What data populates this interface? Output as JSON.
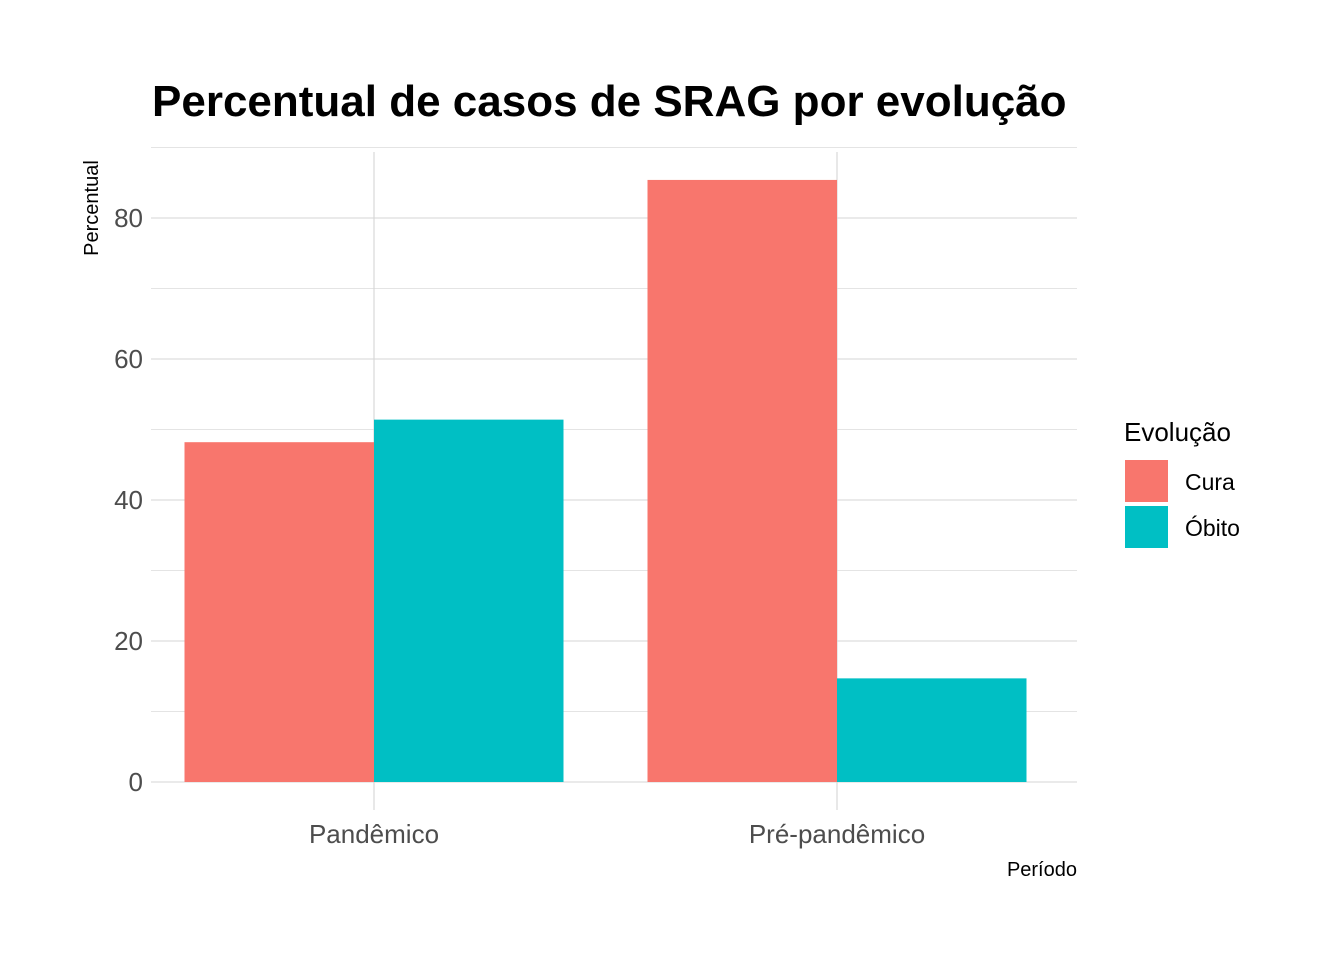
{
  "chart_data": {
    "type": "bar",
    "title": "Percentual de casos de SRAG por evolução",
    "xlabel": "Período",
    "ylabel": "Percentual",
    "categories": [
      "Pandêmico",
      "Pré-pandêmico"
    ],
    "series": [
      {
        "name": "Cura",
        "values": [
          48.2,
          85.4
        ],
        "color": "#F8766D"
      },
      {
        "name": "Óbito",
        "values": [
          51.4,
          14.7
        ],
        "color": "#00BFC4"
      }
    ],
    "ylim": [
      0,
      90
    ],
    "yticks": [
      0,
      20,
      40,
      60,
      80
    ],
    "grid": true,
    "legend": {
      "title": "Evolução",
      "position": "right"
    }
  }
}
